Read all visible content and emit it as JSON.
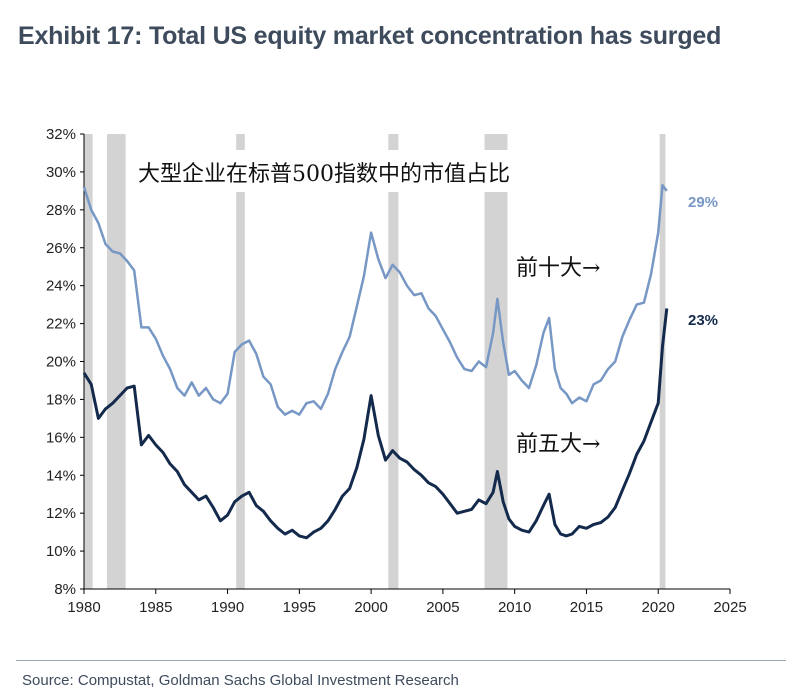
{
  "title": "Exhibit 17: Total US equity market concentration has surged",
  "source": "Source: Compustat, Goldman Sachs Global Investment Research",
  "chart_data": {
    "type": "line",
    "title": "Exhibit 17: Total US equity market concentration has surged",
    "subtitle": "大型企业在标普500指数中的市值占比",
    "xlabel": "",
    "ylabel": "",
    "xlim": [
      1980,
      2025
    ],
    "ylim": [
      8,
      32
    ],
    "x_ticks": [
      1980,
      1985,
      1990,
      1995,
      2000,
      2005,
      2010,
      2015,
      2020,
      2025
    ],
    "y_ticks": [
      8,
      10,
      12,
      14,
      16,
      18,
      20,
      22,
      24,
      26,
      28,
      30,
      32
    ],
    "y_tick_labels": [
      "8%",
      "10%",
      "12%",
      "14%",
      "16%",
      "18%",
      "20%",
      "22%",
      "24%",
      "26%",
      "28%",
      "30%",
      "32%"
    ],
    "grid": false,
    "recessions": [
      [
        1980.0,
        1980.6
      ],
      [
        1981.6,
        1982.9
      ],
      [
        1990.6,
        1991.2
      ],
      [
        2001.2,
        2001.9
      ],
      [
        2007.9,
        2009.5
      ],
      [
        2020.1,
        2020.5
      ]
    ],
    "series": [
      {
        "name": "前十大",
        "color": "#7797c4",
        "end_label": "29%",
        "annotation": "前十大→",
        "points": [
          [
            1980,
            29.2
          ],
          [
            1980.5,
            28.0
          ],
          [
            1981,
            27.3
          ],
          [
            1981.5,
            26.2
          ],
          [
            1982,
            25.8
          ],
          [
            1982.5,
            25.7
          ],
          [
            1983,
            25.3
          ],
          [
            1983.5,
            24.8
          ],
          [
            1984,
            21.8
          ],
          [
            1984.5,
            21.8
          ],
          [
            1985,
            21.2
          ],
          [
            1985.5,
            20.3
          ],
          [
            1986,
            19.6
          ],
          [
            1986.5,
            18.6
          ],
          [
            1987,
            18.2
          ],
          [
            1987.5,
            18.9
          ],
          [
            1988,
            18.2
          ],
          [
            1988.5,
            18.6
          ],
          [
            1989,
            18.0
          ],
          [
            1989.5,
            17.8
          ],
          [
            1990,
            18.3
          ],
          [
            1990.5,
            20.5
          ],
          [
            1991,
            20.9
          ],
          [
            1991.5,
            21.1
          ],
          [
            1992,
            20.4
          ],
          [
            1992.5,
            19.2
          ],
          [
            1993,
            18.8
          ],
          [
            1993.5,
            17.6
          ],
          [
            1994,
            17.2
          ],
          [
            1994.5,
            17.4
          ],
          [
            1995,
            17.2
          ],
          [
            1995.5,
            17.8
          ],
          [
            1996,
            17.9
          ],
          [
            1996.5,
            17.5
          ],
          [
            1997,
            18.3
          ],
          [
            1997.5,
            19.6
          ],
          [
            1998,
            20.5
          ],
          [
            1998.5,
            21.3
          ],
          [
            1999,
            22.9
          ],
          [
            1999.5,
            24.5
          ],
          [
            2000,
            26.8
          ],
          [
            2000.5,
            25.4
          ],
          [
            2001,
            24.4
          ],
          [
            2001.5,
            25.1
          ],
          [
            2002,
            24.7
          ],
          [
            2002.5,
            24.0
          ],
          [
            2003,
            23.5
          ],
          [
            2003.5,
            23.6
          ],
          [
            2004,
            22.8
          ],
          [
            2004.5,
            22.4
          ],
          [
            2005,
            21.7
          ],
          [
            2005.5,
            21.0
          ],
          [
            2006,
            20.2
          ],
          [
            2006.5,
            19.6
          ],
          [
            2007,
            19.5
          ],
          [
            2007.5,
            20.0
          ],
          [
            2008,
            19.7
          ],
          [
            2008.5,
            21.5
          ],
          [
            2008.8,
            23.3
          ],
          [
            2009.2,
            21.0
          ],
          [
            2009.6,
            19.3
          ],
          [
            2010,
            19.5
          ],
          [
            2010.5,
            19.0
          ],
          [
            2011,
            18.6
          ],
          [
            2011.5,
            19.8
          ],
          [
            2012,
            21.5
          ],
          [
            2012.4,
            22.3
          ],
          [
            2012.8,
            19.6
          ],
          [
            2013.2,
            18.6
          ],
          [
            2013.6,
            18.3
          ],
          [
            2014,
            17.8
          ],
          [
            2014.5,
            18.1
          ],
          [
            2015,
            17.9
          ],
          [
            2015.5,
            18.8
          ],
          [
            2016,
            19.0
          ],
          [
            2016.5,
            19.6
          ],
          [
            2017,
            20.0
          ],
          [
            2017.5,
            21.3
          ],
          [
            2018,
            22.2
          ],
          [
            2018.5,
            23.0
          ],
          [
            2019,
            23.1
          ],
          [
            2019.5,
            24.6
          ],
          [
            2020,
            26.8
          ],
          [
            2020.3,
            29.3
          ],
          [
            2020.6,
            29.0
          ]
        ]
      },
      {
        "name": "前五大",
        "color": "#142a4c",
        "end_label": "23%",
        "annotation": "前五大→",
        "points": [
          [
            1980,
            19.4
          ],
          [
            1980.5,
            18.8
          ],
          [
            1981,
            17.0
          ],
          [
            1981.5,
            17.5
          ],
          [
            1982,
            17.8
          ],
          [
            1982.5,
            18.2
          ],
          [
            1983,
            18.6
          ],
          [
            1983.5,
            18.7
          ],
          [
            1984,
            15.6
          ],
          [
            1984.5,
            16.1
          ],
          [
            1985,
            15.6
          ],
          [
            1985.5,
            15.2
          ],
          [
            1986,
            14.6
          ],
          [
            1986.5,
            14.2
          ],
          [
            1987,
            13.5
          ],
          [
            1987.5,
            13.1
          ],
          [
            1988,
            12.7
          ],
          [
            1988.5,
            12.9
          ],
          [
            1989,
            12.3
          ],
          [
            1989.5,
            11.6
          ],
          [
            1990,
            11.9
          ],
          [
            1990.5,
            12.6
          ],
          [
            1991,
            12.9
          ],
          [
            1991.5,
            13.1
          ],
          [
            1992,
            12.4
          ],
          [
            1992.5,
            12.1
          ],
          [
            1993,
            11.6
          ],
          [
            1993.5,
            11.2
          ],
          [
            1994,
            10.9
          ],
          [
            1994.5,
            11.1
          ],
          [
            1995,
            10.8
          ],
          [
            1995.5,
            10.7
          ],
          [
            1996,
            11.0
          ],
          [
            1996.5,
            11.2
          ],
          [
            1997,
            11.6
          ],
          [
            1997.5,
            12.2
          ],
          [
            1998,
            12.9
          ],
          [
            1998.5,
            13.3
          ],
          [
            1999,
            14.4
          ],
          [
            1999.5,
            15.9
          ],
          [
            2000,
            18.2
          ],
          [
            2000.5,
            16.1
          ],
          [
            2001,
            14.8
          ],
          [
            2001.5,
            15.3
          ],
          [
            2002,
            14.9
          ],
          [
            2002.5,
            14.7
          ],
          [
            2003,
            14.3
          ],
          [
            2003.5,
            14.0
          ],
          [
            2004,
            13.6
          ],
          [
            2004.5,
            13.4
          ],
          [
            2005,
            13.0
          ],
          [
            2005.5,
            12.5
          ],
          [
            2006,
            12.0
          ],
          [
            2006.5,
            12.1
          ],
          [
            2007,
            12.2
          ],
          [
            2007.5,
            12.7
          ],
          [
            2008,
            12.5
          ],
          [
            2008.5,
            13.1
          ],
          [
            2008.8,
            14.2
          ],
          [
            2009.2,
            12.6
          ],
          [
            2009.6,
            11.7
          ],
          [
            2010,
            11.3
          ],
          [
            2010.5,
            11.1
          ],
          [
            2011,
            11.0
          ],
          [
            2011.5,
            11.6
          ],
          [
            2012,
            12.4
          ],
          [
            2012.4,
            13.0
          ],
          [
            2012.8,
            11.4
          ],
          [
            2013.2,
            10.9
          ],
          [
            2013.6,
            10.8
          ],
          [
            2014,
            10.9
          ],
          [
            2014.5,
            11.3
          ],
          [
            2015,
            11.2
          ],
          [
            2015.5,
            11.4
          ],
          [
            2016,
            11.5
          ],
          [
            2016.5,
            11.8
          ],
          [
            2017,
            12.3
          ],
          [
            2017.5,
            13.2
          ],
          [
            2018,
            14.1
          ],
          [
            2018.5,
            15.1
          ],
          [
            2019,
            15.8
          ],
          [
            2019.5,
            16.8
          ],
          [
            2020,
            17.8
          ],
          [
            2020.3,
            20.8
          ],
          [
            2020.6,
            22.8
          ]
        ]
      }
    ]
  }
}
